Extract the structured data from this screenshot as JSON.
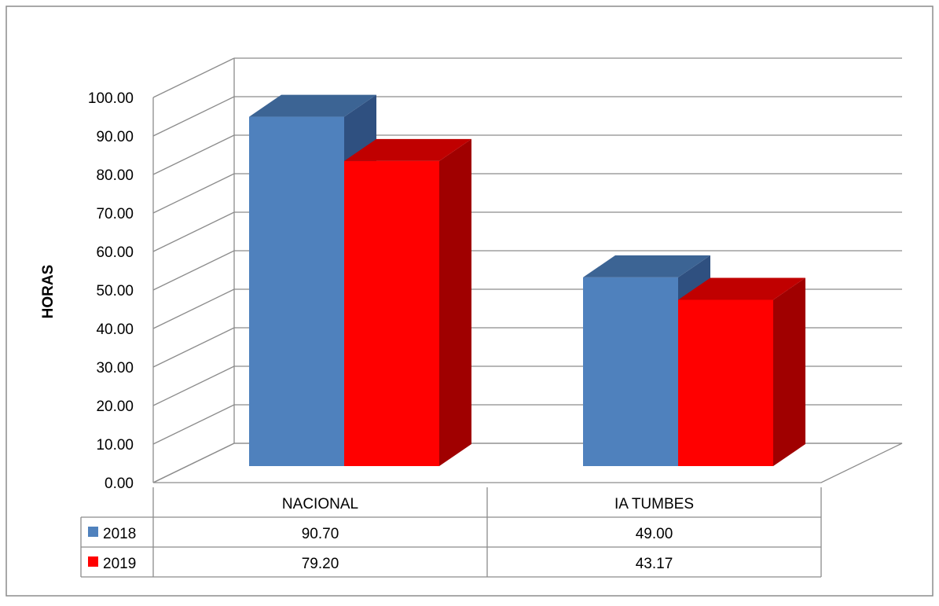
{
  "chart_data": {
    "type": "bar",
    "title": "",
    "xlabel": "",
    "ylabel": "HORAS",
    "ylim": [
      0,
      100
    ],
    "ytick_step": 10,
    "ytick_labels": [
      "0.00",
      "10.00",
      "20.00",
      "30.00",
      "40.00",
      "50.00",
      "60.00",
      "70.00",
      "80.00",
      "90.00",
      "100.00"
    ],
    "categories": [
      "NACIONAL",
      "IA TUMBES"
    ],
    "series": [
      {
        "name": "2018",
        "values": [
          90.7,
          49.0
        ],
        "value_labels": [
          "90.70",
          "49.00"
        ],
        "color": "#4f81bd",
        "top_color": "#3c6494",
        "side_color": "#2f5080"
      },
      {
        "name": "2019",
        "values": [
          79.2,
          43.17
        ],
        "value_labels": [
          "79.20",
          "43.17"
        ],
        "color": "#ff0000",
        "top_color": "#c00000",
        "side_color": "#a00000"
      }
    ],
    "grid": true,
    "legend": "data-table",
    "style": "3d-clustered-column"
  }
}
